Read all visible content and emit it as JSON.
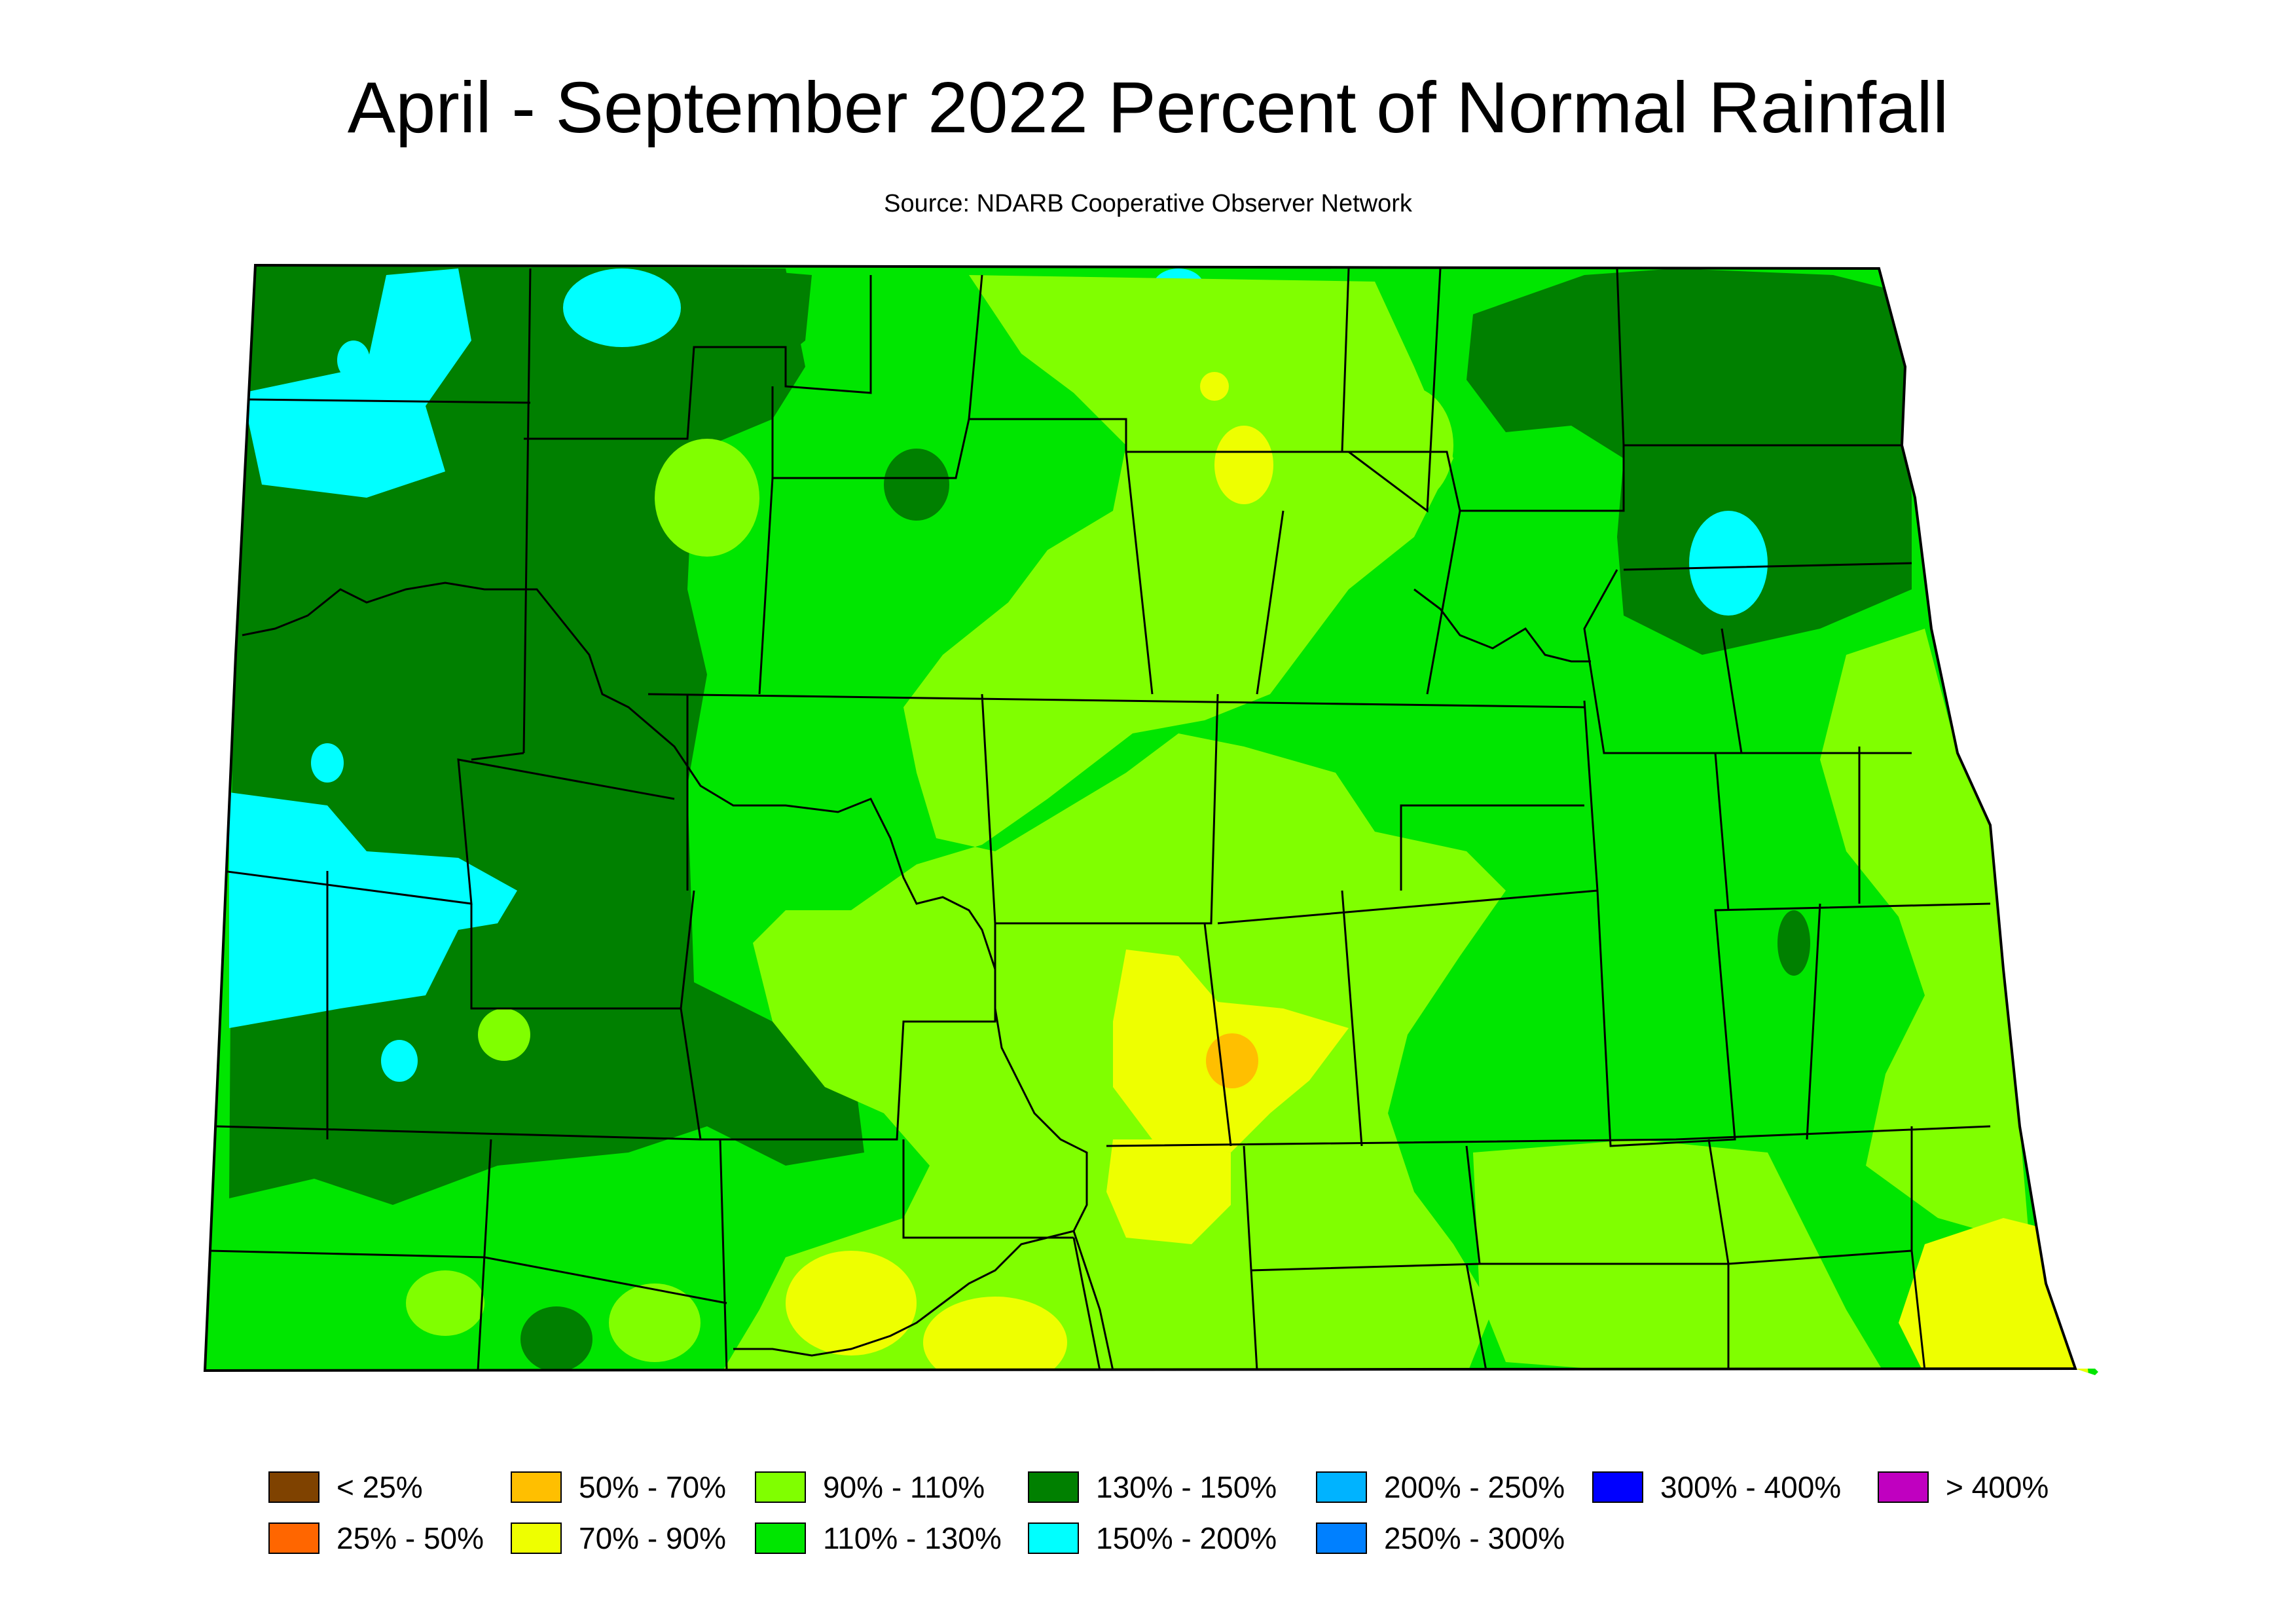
{
  "title": "April - September 2022 Percent of Normal Rainfall",
  "source": "Source: NDARB Cooperative Observer Network",
  "colors": {
    "lt25": "#7f4200",
    "p25_50": "#ff6600",
    "p50_70": "#ffbf00",
    "p70_90": "#eeff00",
    "p90_110": "#80ff00",
    "p110_130": "#00e600",
    "p130_150": "#008000",
    "p150_200": "#00ffff",
    "p200_250": "#00b3ff",
    "p250_300": "#0080ff",
    "p300_400": "#0000ff",
    "gt400": "#c000c0"
  },
  "legend": [
    {
      "label": "< 25%",
      "color": "#7f4200"
    },
    {
      "label": "25% - 50%",
      "color": "#ff6600"
    },
    {
      "label": "50% - 70%",
      "color": "#ffbf00"
    },
    {
      "label": "70% - 90%",
      "color": "#eeff00"
    },
    {
      "label": "90% - 110%",
      "color": "#80ff00"
    },
    {
      "label": "110% - 130%",
      "color": "#00e600"
    },
    {
      "label": "130% - 150%",
      "color": "#008000"
    },
    {
      "label": "150% - 200%",
      "color": "#00ffff"
    },
    {
      "label": "200% - 250%",
      "color": "#00b3ff"
    },
    {
      "label": "250% - 300%",
      "color": "#0080ff"
    },
    {
      "label": "300% - 400%",
      "color": "#0000ff"
    },
    {
      "label": "> 400%",
      "color": "#c000c0"
    }
  ]
}
